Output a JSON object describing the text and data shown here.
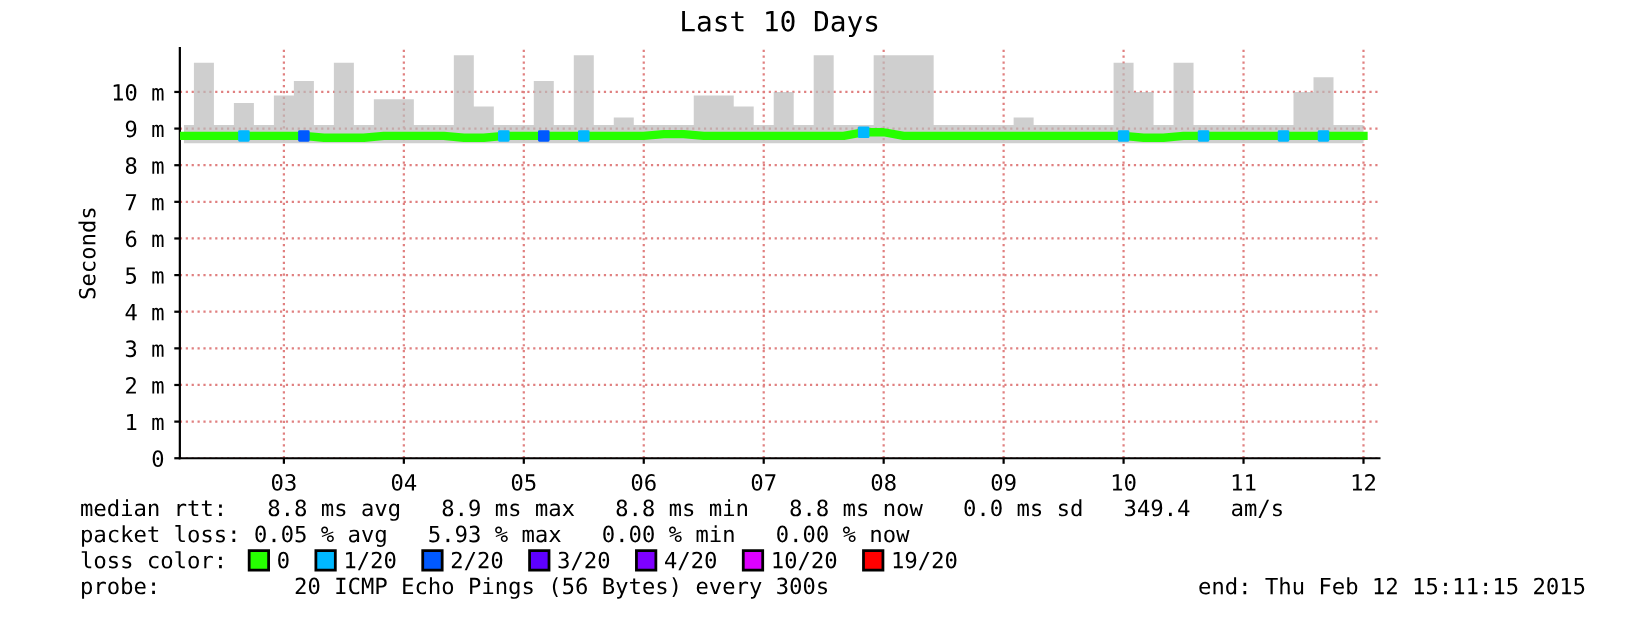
{
  "chart_data": {
    "type": "line",
    "title": "Last 10 Days",
    "ylabel": "Seconds",
    "legend_title": "loss color:",
    "legend": "bottom",
    "grid": true,
    "x": [
      "2015-02-02T16:00",
      "2015-02-02T20:00",
      "2015-02-03T00:00",
      "2015-02-03T04:00",
      "2015-02-03T08:00",
      "2015-02-03T12:00",
      "2015-02-03T16:00",
      "2015-02-03T20:00",
      "2015-02-04T00:00",
      "2015-02-04T04:00",
      "2015-02-04T08:00",
      "2015-02-04T12:00",
      "2015-02-04T16:00",
      "2015-02-04T20:00",
      "2015-02-05T00:00",
      "2015-02-05T04:00",
      "2015-02-05T08:00",
      "2015-02-05T12:00",
      "2015-02-05T16:00",
      "2015-02-05T20:00",
      "2015-02-06T00:00",
      "2015-02-06T04:00",
      "2015-02-06T08:00",
      "2015-02-06T12:00",
      "2015-02-06T16:00",
      "2015-02-06T20:00",
      "2015-02-07T00:00",
      "2015-02-07T04:00",
      "2015-02-07T08:00",
      "2015-02-07T12:00",
      "2015-02-07T16:00",
      "2015-02-07T20:00",
      "2015-02-08T00:00",
      "2015-02-08T04:00",
      "2015-02-08T08:00",
      "2015-02-08T12:00",
      "2015-02-08T16:00",
      "2015-02-08T20:00",
      "2015-02-09T00:00",
      "2015-02-09T04:00",
      "2015-02-09T08:00",
      "2015-02-09T12:00",
      "2015-02-09T16:00",
      "2015-02-09T20:00",
      "2015-02-10T00:00",
      "2015-02-10T04:00",
      "2015-02-10T08:00",
      "2015-02-10T12:00",
      "2015-02-10T16:00",
      "2015-02-10T20:00",
      "2015-02-11T00:00",
      "2015-02-11T04:00",
      "2015-02-11T08:00",
      "2015-02-11T12:00",
      "2015-02-11T16:00",
      "2015-02-11T20:00",
      "2015-02-12T00:00",
      "2015-02-12T04:00",
      "2015-02-12T08:00",
      "2015-02-12T12:00"
    ],
    "series": [
      {
        "name": "0",
        "color": "#26ff00",
        "values": [
          8.8,
          8.8,
          8.8,
          8.8,
          8.8,
          8.8,
          8.8,
          8.75,
          8.75,
          8.75,
          8.8,
          8.8,
          8.8,
          8.8,
          8.75,
          8.75,
          8.8,
          8.8,
          8.8,
          8.8,
          8.8,
          8.8,
          8.8,
          8.8,
          8.85,
          8.85,
          8.8,
          8.8,
          8.8,
          8.8,
          8.8,
          8.8,
          8.8,
          8.8,
          8.9,
          8.9,
          8.8,
          8.8,
          8.8,
          8.8,
          8.8,
          8.8,
          8.8,
          8.8,
          8.8,
          8.8,
          8.8,
          8.8,
          8.75,
          8.75,
          8.8,
          8.8,
          8.8,
          8.8,
          8.8,
          8.8,
          8.8,
          8.8,
          8.8,
          8.8
        ],
        "lower": [
          8.6,
          8.6,
          8.6,
          8.6,
          8.6,
          8.6,
          8.6,
          8.6,
          8.6,
          8.6,
          8.6,
          8.6,
          8.6,
          8.6,
          8.6,
          8.6,
          8.6,
          8.6,
          8.6,
          8.6,
          8.6,
          8.6,
          8.6,
          8.6,
          8.6,
          8.6,
          8.6,
          8.6,
          8.6,
          8.6,
          8.6,
          8.6,
          8.6,
          8.6,
          8.6,
          8.6,
          8.6,
          8.6,
          8.6,
          8.6,
          8.6,
          8.6,
          8.6,
          8.6,
          8.6,
          8.6,
          8.6,
          8.6,
          8.6,
          8.6,
          8.6,
          8.6,
          8.6,
          8.6,
          8.6,
          8.6,
          8.6,
          8.6,
          8.6,
          8.6
        ],
        "upper": [
          9.1,
          10.8,
          9.1,
          9.7,
          9.1,
          9.9,
          10.3,
          9.1,
          10.8,
          9.1,
          9.8,
          9.8,
          9.1,
          9.1,
          11.0,
          9.6,
          9.1,
          9.1,
          10.3,
          9.1,
          11.0,
          9.1,
          9.3,
          9.1,
          9.1,
          9.1,
          9.9,
          9.9,
          9.6,
          9.1,
          10.0,
          9.1,
          11.0,
          9.1,
          9.1,
          11.0,
          11.0,
          11.0,
          9.1,
          9.1,
          9.1,
          9.1,
          9.3,
          9.1,
          9.1,
          9.1,
          9.1,
          10.8,
          10.0,
          9.1,
          10.8,
          9.1,
          9.1,
          9.1,
          9.1,
          9.1,
          10.0,
          10.4,
          9.1,
          9.1
        ]
      },
      {
        "name": "1/20",
        "type": "scatter",
        "marker": "square",
        "color": "#00b8ff",
        "x": [
          "2015-02-03T04:00",
          "2015-02-05T08:00",
          "2015-02-06T00:00",
          "2015-02-08T08:00",
          "2015-02-10T12:00",
          "2015-02-11T04:00",
          "2015-02-11T20:00",
          "2015-02-12T04:00"
        ],
        "values": [
          8.8,
          8.8,
          8.8,
          8.9,
          8.8,
          8.8,
          8.8,
          8.8
        ]
      },
      {
        "name": "2/20",
        "type": "scatter",
        "marker": "square",
        "color": "#0059ff",
        "x": [
          "2015-02-03T16:00",
          "2015-02-05T16:00"
        ],
        "values": [
          8.8,
          8.8
        ]
      },
      {
        "name": "3/20",
        "type": "scatter",
        "marker": "square",
        "color": "#5e00ff",
        "values": [
          null,
          null,
          null,
          null,
          null,
          null,
          null,
          null,
          null,
          null,
          null,
          null,
          null,
          null,
          null,
          null,
          null,
          null,
          null,
          null,
          null,
          null,
          null,
          null,
          null,
          null,
          null,
          null,
          null,
          null,
          null,
          null,
          null,
          null,
          null,
          null,
          null,
          null,
          null,
          null,
          null,
          null,
          null,
          null,
          null,
          null,
          null,
          null,
          null,
          null,
          null,
          null,
          null,
          null,
          null,
          null,
          null,
          null,
          null,
          null
        ]
      },
      {
        "name": "4/20",
        "type": "scatter",
        "marker": "square",
        "color": "#7e00ff",
        "values": [
          null,
          null,
          null,
          null,
          null,
          null,
          null,
          null,
          null,
          null,
          null,
          null,
          null,
          null,
          null,
          null,
          null,
          null,
          null,
          null,
          null,
          null,
          null,
          null,
          null,
          null,
          null,
          null,
          null,
          null,
          null,
          null,
          null,
          null,
          null,
          null,
          null,
          null,
          null,
          null,
          null,
          null,
          null,
          null,
          null,
          null,
          null,
          null,
          null,
          null,
          null,
          null,
          null,
          null,
          null,
          null,
          null,
          null,
          null,
          null
        ]
      },
      {
        "name": "10/20",
        "type": "scatter",
        "marker": "square",
        "color": "#dd00ff",
        "values": [
          null,
          null,
          null,
          null,
          null,
          null,
          null,
          null,
          null,
          null,
          null,
          null,
          null,
          null,
          null,
          null,
          null,
          null,
          null,
          null,
          null,
          null,
          null,
          null,
          null,
          null,
          null,
          null,
          null,
          null,
          null,
          null,
          null,
          null,
          null,
          null,
          null,
          null,
          null,
          null,
          null,
          null,
          null,
          null,
          null,
          null,
          null,
          null,
          null,
          null,
          null,
          null,
          null,
          null,
          null,
          null,
          null,
          null,
          null,
          null
        ]
      },
      {
        "name": "19/20",
        "type": "scatter",
        "marker": "square",
        "color": "#ff0000",
        "values": [
          null,
          null,
          null,
          null,
          null,
          null,
          null,
          null,
          null,
          null,
          null,
          null,
          null,
          null,
          null,
          null,
          null,
          null,
          null,
          null,
          null,
          null,
          null,
          null,
          null,
          null,
          null,
          null,
          null,
          null,
          null,
          null,
          null,
          null,
          null,
          null,
          null,
          null,
          null,
          null,
          null,
          null,
          null,
          null,
          null,
          null,
          null,
          null,
          null,
          null,
          null,
          null,
          null,
          null,
          null,
          null,
          null,
          null,
          null,
          null
        ]
      }
    ],
    "xlim": [
      "2015-02-02T15:11",
      "2015-02-12T15:11"
    ],
    "xticks": [
      {
        "value": "2015-02-03T12:00",
        "label": "03"
      },
      {
        "value": "2015-02-04T12:00",
        "label": "04"
      },
      {
        "value": "2015-02-05T12:00",
        "label": "05"
      },
      {
        "value": "2015-02-06T12:00",
        "label": "06"
      },
      {
        "value": "2015-02-07T12:00",
        "label": "07"
      },
      {
        "value": "2015-02-08T12:00",
        "label": "08"
      },
      {
        "value": "2015-02-09T12:00",
        "label": "09"
      },
      {
        "value": "2015-02-10T12:00",
        "label": "10"
      },
      {
        "value": "2015-02-11T12:00",
        "label": "11"
      },
      {
        "value": "2015-02-12T12:00",
        "label": "12"
      }
    ],
    "ylim": [
      0,
      11.2
    ],
    "yticks": [
      0,
      {
        "value": 1,
        "label": "1 m"
      },
      {
        "value": 2,
        "label": "2 m"
      },
      {
        "value": 3,
        "label": "3 m"
      },
      {
        "value": 4,
        "label": "4 m"
      },
      {
        "value": 5,
        "label": "5 m"
      },
      {
        "value": 6,
        "label": "6 m"
      },
      {
        "value": 7,
        "label": "7 m"
      },
      {
        "value": 8,
        "label": "8 m"
      },
      {
        "value": 9,
        "label": "9 m"
      },
      {
        "value": 10,
        "label": "10 m"
      }
    ],
    "annotations": [
      "median rtt:   8.8 ms avg   8.9 ms max   8.8 ms min   8.8 ms now   0.0 ms sd   349.4   am/s",
      "packet loss: 0.05 % avg   5.93 % max   0.00 % min   0.00 % now",
      "probe:          20 ICMP Echo Pings (56 Bytes) every 300s",
      "end: Thu Feb 12 15:11:15 2015"
    ]
  }
}
